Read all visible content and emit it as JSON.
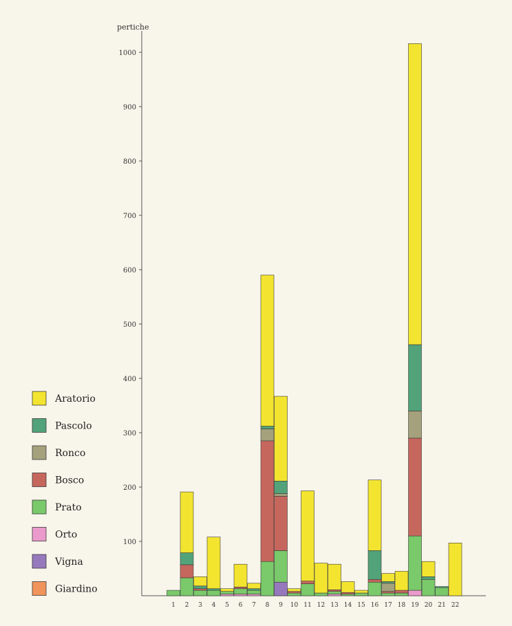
{
  "chart_data": {
    "type": "bar",
    "stacked": true,
    "y_unit_label": "pertiche",
    "ylim": [
      0,
      1050
    ],
    "yticks": [
      100,
      200,
      300,
      400,
      500,
      600,
      700,
      800,
      900,
      1000
    ],
    "categories": [
      "1",
      "2",
      "3",
      "4",
      "5",
      "6",
      "7",
      "8",
      "9",
      "10",
      "11",
      "12",
      "13",
      "14",
      "15",
      "16",
      "17",
      "18",
      "19",
      "20",
      "21",
      "22"
    ],
    "series": [
      {
        "name": "Giardino",
        "color": "#f08a4b",
        "values": [
          0,
          0,
          0,
          0,
          0,
          0,
          0,
          0,
          0,
          0,
          0,
          0,
          0,
          0,
          0,
          0,
          0,
          0,
          0,
          0,
          0,
          0
        ]
      },
      {
        "name": "Vigna",
        "color": "#8b6bb8",
        "values": [
          0,
          0,
          0,
          0,
          0,
          0,
          0,
          0,
          25,
          0,
          0,
          0,
          0,
          0,
          0,
          0,
          0,
          0,
          0,
          0,
          0,
          0
        ]
      },
      {
        "name": "Orto",
        "color": "#e890c8",
        "values": [
          0,
          0,
          0,
          0,
          3,
          3,
          3,
          0,
          0,
          0,
          0,
          0,
          3,
          0,
          0,
          0,
          0,
          0,
          10,
          0,
          0,
          0
        ]
      },
      {
        "name": "Prato",
        "color": "#6cc45c",
        "values": [
          10,
          33,
          10,
          10,
          5,
          10,
          7,
          63,
          58,
          5,
          22,
          5,
          5,
          3,
          5,
          25,
          5,
          5,
          100,
          30,
          15,
          0
        ]
      },
      {
        "name": "Bosco",
        "color": "#c0584e",
        "values": [
          0,
          24,
          3,
          0,
          0,
          3,
          0,
          222,
          100,
          3,
          5,
          0,
          3,
          3,
          0,
          5,
          3,
          5,
          180,
          0,
          0,
          0
        ]
      },
      {
        "name": "Ronco",
        "color": "#9a9870",
        "values": [
          0,
          0,
          0,
          0,
          0,
          0,
          0,
          22,
          5,
          0,
          0,
          0,
          0,
          0,
          0,
          0,
          15,
          0,
          50,
          0,
          0,
          0
        ]
      },
      {
        "name": "Pascolo",
        "color": "#3f9a6e",
        "values": [
          0,
          22,
          5,
          3,
          0,
          0,
          3,
          5,
          23,
          0,
          0,
          0,
          0,
          0,
          0,
          53,
          3,
          0,
          122,
          5,
          2,
          0
        ]
      },
      {
        "name": "Aratorio",
        "color": "#f2e21c",
        "values": [
          0,
          112,
          17,
          95,
          5,
          42,
          10,
          278,
          156,
          5,
          166,
          55,
          47,
          20,
          5,
          130,
          15,
          35,
          554,
          28,
          0,
          97
        ]
      }
    ],
    "legend_position": "left"
  }
}
